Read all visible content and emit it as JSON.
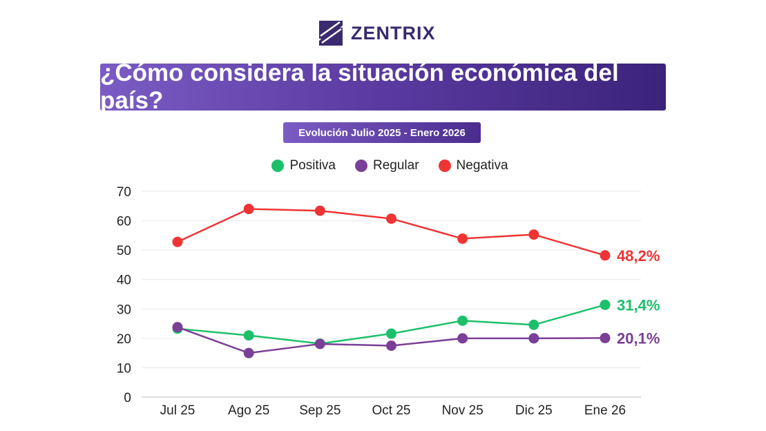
{
  "brand": {
    "name": "ZENTRIX",
    "color": "#3a2a6e"
  },
  "chart_data": {
    "type": "line",
    "title": "¿Cómo considera la situación económica del país?",
    "subtitle": "Evolución Julio 2025 - Enero 2026",
    "categories": [
      "Jul 25",
      "Ago 25",
      "Sep 25",
      "Oct 25",
      "Nov 25",
      "Dic 25",
      "Ene 26"
    ],
    "ylim": [
      0,
      70
    ],
    "yticks": [
      0,
      10,
      20,
      30,
      40,
      50,
      60,
      70
    ],
    "grid": true,
    "legend_position": "top",
    "series": [
      {
        "name": "Positiva",
        "color": "#1cc06a",
        "values": [
          23.3,
          21.0,
          18.2,
          21.6,
          26.0,
          24.6,
          31.4
        ],
        "end_label": "31,4%"
      },
      {
        "name": "Regular",
        "color": "#7a3f96",
        "values": [
          23.8,
          15.0,
          18.1,
          17.5,
          20.0,
          20.0,
          20.1
        ],
        "end_label": "20,1%"
      },
      {
        "name": "Negativa",
        "color": "#ef3434",
        "values": [
          52.8,
          64.0,
          63.4,
          60.7,
          53.9,
          55.3,
          48.2
        ],
        "end_label": "48,2%"
      }
    ]
  }
}
